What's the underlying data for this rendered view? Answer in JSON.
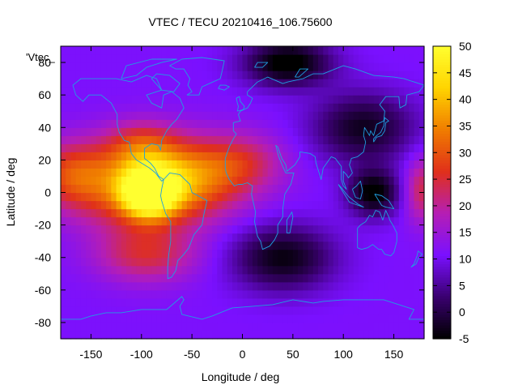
{
  "chart_data": {
    "type": "heatmap",
    "title": "VTEC / TECU 20210416_106.75600",
    "xlabel": "Longitude / deg",
    "ylabel": "Latitude / deg",
    "xlim": [
      -180,
      180
    ],
    "ylim": [
      -90,
      90
    ],
    "x_ticks": [
      -150,
      -100,
      -50,
      0,
      50,
      100,
      150
    ],
    "y_ticks": [
      -80,
      -60,
      -40,
      -20,
      0,
      20,
      40,
      60,
      80
    ],
    "colorbar": {
      "range": [
        -5,
        50
      ],
      "ticks": [
        -5,
        0,
        5,
        10,
        15,
        20,
        25,
        30,
        35,
        40,
        45,
        50
      ],
      "colormap": [
        "#000000",
        "#3a0070",
        "#7a10ff",
        "#b51eb4",
        "#e0301a",
        "#f07d00",
        "#ffd400",
        "#ffff30"
      ]
    },
    "legend_key": "'Vtec_",
    "background_level": 11,
    "blobs": [
      {
        "lon": -92,
        "lat": 0,
        "value": 48,
        "sigma_lon": 18,
        "sigma_lat": 10
      },
      {
        "lon": -100,
        "lat": 4,
        "value": 32,
        "sigma_lon": 50,
        "sigma_lat": 18
      },
      {
        "lon": -55,
        "lat": 10,
        "value": 26,
        "sigma_lon": 45,
        "sigma_lat": 16
      },
      {
        "lon": 0,
        "lat": 20,
        "value": 20,
        "sigma_lon": 30,
        "sigma_lat": 12
      },
      {
        "lon": -95,
        "lat": -38,
        "value": 24,
        "sigma_lon": 35,
        "sigma_lat": 12
      },
      {
        "lon": -170,
        "lat": 12,
        "value": 24,
        "sigma_lon": 25,
        "sigma_lat": 14
      },
      {
        "lon": 178,
        "lat": 2,
        "value": 24,
        "sigma_lon": 12,
        "sigma_lat": 14
      },
      {
        "lon": -100,
        "lat": 30,
        "value": 22,
        "sigma_lon": 25,
        "sigma_lat": 10
      },
      {
        "lon": 130,
        "lat": 0,
        "value": -6,
        "sigma_lon": 18,
        "sigma_lat": 10
      },
      {
        "lon": 45,
        "lat": 80,
        "value": -7,
        "sigma_lon": 30,
        "sigma_lat": 10
      },
      {
        "lon": 40,
        "lat": -40,
        "value": -4,
        "sigma_lon": 35,
        "sigma_lat": 14
      },
      {
        "lon": 120,
        "lat": 40,
        "value": -3,
        "sigma_lon": 35,
        "sigma_lat": 15
      }
    ]
  }
}
